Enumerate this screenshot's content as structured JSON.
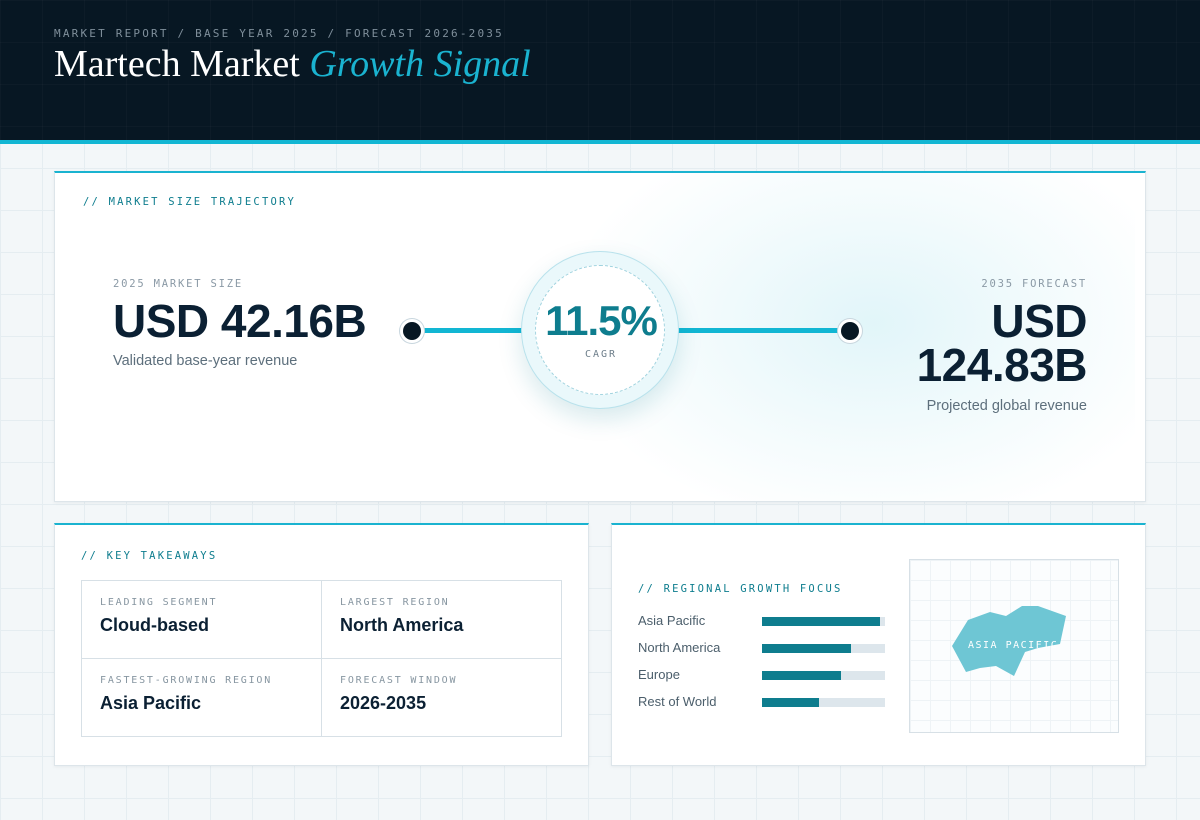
{
  "header": {
    "breadcrumb": "MARKET REPORT / BASE YEAR 2025 / FORECAST 2026-2035",
    "title_main": "Martech Market",
    "title_accent": "Growth Signal"
  },
  "trajectory": {
    "label": "// MARKET SIZE TRAJECTORY",
    "base": {
      "caption": "2025 MARKET SIZE",
      "value": "USD 42.16B",
      "description": "Validated base-year revenue"
    },
    "cagr": {
      "value": "11.5%",
      "label": "CAGR"
    },
    "forecast": {
      "caption": "2035 FORECAST",
      "value_line1": "USD",
      "value_line2": "124.83B",
      "description": "Projected global revenue"
    }
  },
  "takeaways": {
    "label": "// KEY TAKEAWAYS",
    "items": [
      {
        "label": "LEADING SEGMENT",
        "value": "Cloud-based"
      },
      {
        "label": "LARGEST REGION",
        "value": "North America"
      },
      {
        "label": "FASTEST-GROWING REGION",
        "value": "Asia Pacific"
      },
      {
        "label": "FORECAST WINDOW",
        "value": "2026-2035"
      }
    ]
  },
  "regional": {
    "label": "// REGIONAL GROWTH FOCUS",
    "bars": [
      {
        "name": "Asia Pacific",
        "level": 0.96
      },
      {
        "name": "North America",
        "level": 0.72
      },
      {
        "name": "Europe",
        "level": 0.64
      },
      {
        "name": "Rest of World",
        "level": 0.46
      }
    ],
    "map_label": "ASIA PACIFIC"
  },
  "colors": {
    "accent": "#1ab3d0",
    "teal": "#0e7d8e",
    "navy": "#071723"
  }
}
